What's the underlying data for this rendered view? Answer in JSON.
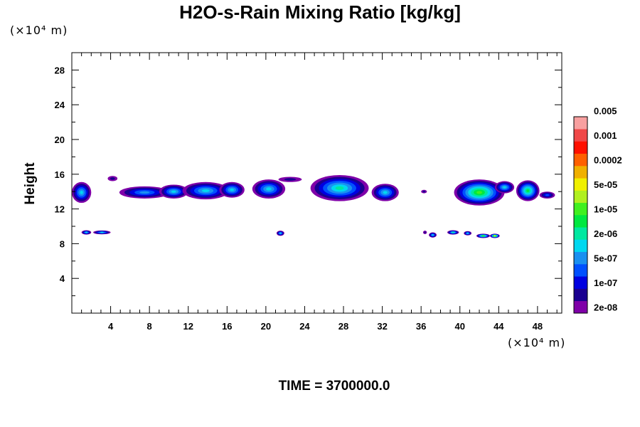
{
  "chart_data": {
    "type": "heatmap",
    "title": "H2O-s-Rain Mixing Ratio [kg/kg]",
    "ylabel": "Height",
    "x_unit": "(×10⁴ m)",
    "y_unit": "(×10⁴ m)",
    "footer": "TIME = 3700000.0",
    "xlim": [
      0,
      50.5
    ],
    "ylim": [
      0,
      30
    ],
    "x_ticks": [
      "4",
      "8",
      "12",
      "16",
      "20",
      "24",
      "28",
      "32",
      "36",
      "40",
      "44",
      "48"
    ],
    "x_tick_values": [
      4,
      8,
      12,
      16,
      20,
      24,
      28,
      32,
      36,
      40,
      44,
      48
    ],
    "y_ticks": [
      "4",
      "8",
      "12",
      "16",
      "20",
      "24",
      "28"
    ],
    "y_tick_values": [
      4,
      8,
      12,
      16,
      20,
      24,
      28
    ],
    "colorbar": {
      "colors": [
        "#7f00a8",
        "#1a0090",
        "#0000e0",
        "#0050ff",
        "#1a90f0",
        "#00d8f0",
        "#00e8a0",
        "#00e840",
        "#40f020",
        "#b0f020",
        "#f0f000",
        "#f0b000",
        "#ff6000",
        "#ff1000",
        "#f04848",
        "#f8a0a0"
      ],
      "labels": [
        "2e-08",
        "1e-07",
        "5e-07",
        "2e-06",
        "1e-05",
        "5e-05",
        "0.0002",
        "0.001",
        "0.005"
      ],
      "label_levels": [
        1,
        3,
        5,
        7,
        9,
        11,
        13,
        15,
        17
      ]
    },
    "rain_regions": [
      {
        "x": 1.0,
        "y": 13.9,
        "rx": 1.0,
        "ry": 1.2,
        "peak": 5
      },
      {
        "x": 4.2,
        "y": 15.5,
        "rx": 0.5,
        "ry": 0.3,
        "peak": 1
      },
      {
        "x": 7.5,
        "y": 13.9,
        "rx": 2.6,
        "ry": 0.7,
        "peak": 4
      },
      {
        "x": 10.5,
        "y": 14.0,
        "rx": 1.5,
        "ry": 0.8,
        "peak": 5
      },
      {
        "x": 13.8,
        "y": 14.1,
        "rx": 2.4,
        "ry": 1.0,
        "peak": 5
      },
      {
        "x": 16.5,
        "y": 14.2,
        "rx": 1.3,
        "ry": 0.9,
        "peak": 5
      },
      {
        "x": 20.3,
        "y": 14.3,
        "rx": 1.7,
        "ry": 1.1,
        "peak": 5
      },
      {
        "x": 22.5,
        "y": 15.4,
        "rx": 1.2,
        "ry": 0.3,
        "peak": 1
      },
      {
        "x": 27.6,
        "y": 14.4,
        "rx": 3.0,
        "ry": 1.5,
        "peak": 6
      },
      {
        "x": 32.3,
        "y": 13.9,
        "rx": 1.4,
        "ry": 1.0,
        "peak": 5
      },
      {
        "x": 36.3,
        "y": 14.0,
        "rx": 0.3,
        "ry": 0.2,
        "peak": 1
      },
      {
        "x": 42.0,
        "y": 13.9,
        "rx": 2.6,
        "ry": 1.5,
        "peak": 8
      },
      {
        "x": 44.6,
        "y": 14.5,
        "rx": 1.0,
        "ry": 0.7,
        "peak": 5
      },
      {
        "x": 47.0,
        "y": 14.1,
        "rx": 1.2,
        "ry": 1.2,
        "peak": 7
      },
      {
        "x": 49.0,
        "y": 13.6,
        "rx": 0.8,
        "ry": 0.4,
        "peak": 3
      },
      {
        "x": 1.5,
        "y": 9.3,
        "rx": 0.5,
        "ry": 0.25,
        "peak": 5
      },
      {
        "x": 3.1,
        "y": 9.3,
        "rx": 0.9,
        "ry": 0.22,
        "peak": 5
      },
      {
        "x": 21.5,
        "y": 9.2,
        "rx": 0.4,
        "ry": 0.3,
        "peak": 5
      },
      {
        "x": 36.4,
        "y": 9.3,
        "rx": 0.2,
        "ry": 0.2,
        "peak": 1
      },
      {
        "x": 37.2,
        "y": 9.0,
        "rx": 0.4,
        "ry": 0.3,
        "peak": 5
      },
      {
        "x": 39.3,
        "y": 9.3,
        "rx": 0.6,
        "ry": 0.25,
        "peak": 6
      },
      {
        "x": 40.8,
        "y": 9.2,
        "rx": 0.4,
        "ry": 0.25,
        "peak": 5
      },
      {
        "x": 42.4,
        "y": 8.9,
        "rx": 0.7,
        "ry": 0.25,
        "peak": 8
      },
      {
        "x": 43.6,
        "y": 8.9,
        "rx": 0.5,
        "ry": 0.25,
        "peak": 10
      }
    ]
  }
}
